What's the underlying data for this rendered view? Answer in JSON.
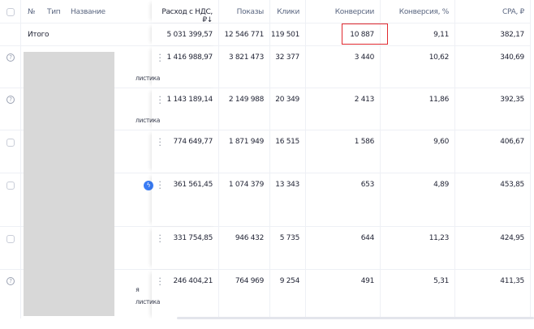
{
  "header": {
    "num": "№",
    "type": "Тип",
    "name": "Название",
    "spend": "Расход с НДС, ₽↓",
    "shows": "Показы",
    "clicks": "Клики",
    "conversions": "Конверсии",
    "conv_rate": "Конверсия, %",
    "cpa": "CPA, ₽"
  },
  "total": {
    "label": "Итого",
    "spend": "5 031 399,57",
    "shows": "12 546 771",
    "clicks": "119 501",
    "conversions": "10 887",
    "conv_rate": "9,11",
    "cpa": "382,17"
  },
  "rows": [
    {
      "status_icon": "help-icon",
      "subtitle": "листика",
      "spend": "1 416 988,97",
      "shows": "3 821 473",
      "clicks": "32 377",
      "conversions": "3 440",
      "conv_rate": "10,62",
      "cpa": "340,69"
    },
    {
      "status_icon": "help-icon",
      "subtitle": "листика",
      "spend": "1 143 189,14",
      "shows": "2 149 988",
      "clicks": "20 349",
      "conversions": "2 413",
      "conv_rate": "11,86",
      "cpa": "392,35"
    },
    {
      "status_icon": "checkbox",
      "spend": "774 649,77",
      "shows": "1 871 949",
      "clicks": "16 515",
      "conversions": "1 586",
      "conv_rate": "9,60",
      "cpa": "406,67"
    },
    {
      "status_icon": "checkbox",
      "badge_icon": "lightning-icon",
      "spend": "361 561,45",
      "shows": "1 074 379",
      "clicks": "13 343",
      "conversions": "653",
      "conv_rate": "4,89",
      "cpa": "453,85"
    },
    {
      "status_icon": "checkbox",
      "spend": "331 754,85",
      "shows": "946 432",
      "clicks": "5 735",
      "conversions": "644",
      "conv_rate": "11,23",
      "cpa": "424,95"
    },
    {
      "status_icon": "help-icon",
      "subtitle_top": "я",
      "subtitle": "листика",
      "spend": "246 404,21",
      "shows": "764 969",
      "clicks": "9 254",
      "conversions": "491",
      "conv_rate": "5,31",
      "cpa": "411,35"
    }
  ],
  "colors": {
    "highlight": "#e0282e",
    "accent": "#3a7cf5"
  }
}
